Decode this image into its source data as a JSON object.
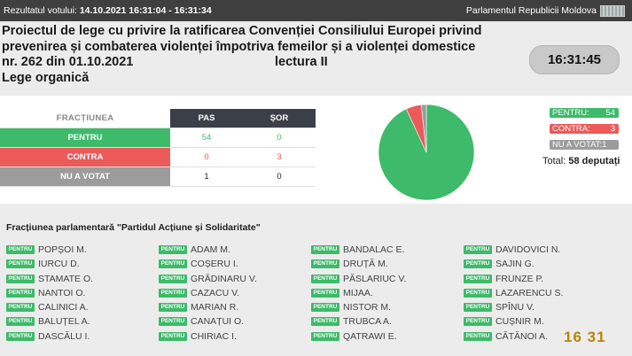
{
  "header": {
    "result_label": "Rezultatul votului:",
    "result_time": "14.10.2021 16:31:04 - 16:31:34",
    "parliament": "Parlamentul Republicii Moldova"
  },
  "title": {
    "line1": "Proiectul de lege cu privire la ratificarea Convenției Consiliului Europei privind",
    "line2": "prevenirea și combaterea violenței împotriva femeilor și a violenței domestice",
    "line3": "nr. 262 din 01.10.2021",
    "lectura": "lectura II",
    "line4": "Lege organică"
  },
  "clock": "16:31:45",
  "vote_table": {
    "headers": [
      "FRACȚIUNEA",
      "PAS",
      "ȘOR"
    ],
    "rows": [
      {
        "label": "PENTRU",
        "pas": "54",
        "sor": "0"
      },
      {
        "label": "CONTRA",
        "pas": "0",
        "sor": "3"
      },
      {
        "label": "NU A VOTAT",
        "pas": "1",
        "sor": "0"
      }
    ]
  },
  "chart_data": {
    "type": "pie",
    "labels": [
      "PENTRU",
      "CONTRA",
      "NU A VOTAT"
    ],
    "values": [
      54,
      3,
      1
    ],
    "colors": [
      "#3dba6a",
      "#ec5a5a",
      "#9c9c9c"
    ]
  },
  "legend": {
    "pentru_label": "PENTRU:",
    "pentru_value": "54",
    "contra_label": "CONTRA:",
    "contra_value": "3",
    "nuvotat_label": "NU A VOTAT:1"
  },
  "total": {
    "label": "Total:",
    "value": "58 deputați"
  },
  "faction_title": "Fracțiunea parlamentară \"Partidul Acțiune și Solidaritate\"",
  "vote_badge": "PENTRU",
  "deputies": [
    [
      "POPȘOI M.",
      "IURCU D.",
      "STAMATE O.",
      "NANTOI O.",
      "CALINICI A.",
      "BALUȚEL A.",
      "DASCĂLU I."
    ],
    [
      "ADAM M.",
      "COȘERU I.",
      "GRĂDINARU V.",
      "CAZACU V.",
      "MARIAN R.",
      "CANAȚUI O.",
      "CHIRIAC I."
    ],
    [
      "BANDALAC E.",
      "DRUȚĂ M.",
      "PĂSLARIUC V.",
      "MIJAA.",
      "NISTOR M.",
      "TRUBCA A.",
      "QATRAWI E."
    ],
    [
      "DAVIDOVICI N.",
      "SAJIN G.",
      "FRUNZE P.",
      "LAZARENCU S.",
      "SPÎNU V.",
      "CUȘNIR M.",
      "CĂTĂNOI A."
    ]
  ],
  "timer": {
    "a": "16",
    "b": "31"
  }
}
